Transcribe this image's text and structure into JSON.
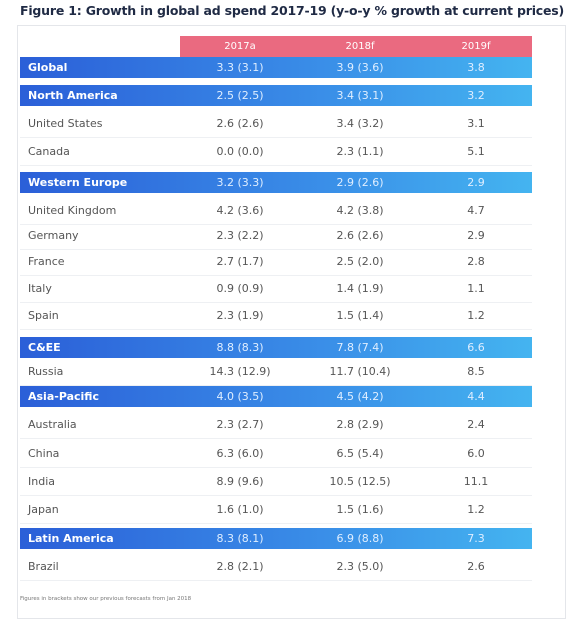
{
  "title": "Figure 1: Growth in global ad spend 2017-19 (y-o-y % growth at current prices)",
  "columns": [
    "2017a",
    "2018f",
    "2019f"
  ],
  "rows": [
    {
      "label": "Global",
      "region": true,
      "v1": "3.3 (3.1)",
      "v2": "3.9 (3.6)",
      "v3": "3.8"
    },
    {
      "label": "North America",
      "region": true,
      "v1": "2.5 (2.5)",
      "v2": "3.4 (3.1)",
      "v3": "3.2"
    },
    {
      "label": "United States",
      "region": false,
      "v1": "2.6 (2.6)",
      "v2": "3.4 (3.2)",
      "v3": "3.1"
    },
    {
      "label": "Canada",
      "region": false,
      "v1": "0.0 (0.0)",
      "v2": "2.3 (1.1)",
      "v3": "5.1"
    },
    {
      "label": "Western Europe",
      "region": true,
      "v1": "3.2 (3.3)",
      "v2": "2.9 (2.6)",
      "v3": "2.9"
    },
    {
      "label": "United Kingdom",
      "region": false,
      "v1": "4.2 (3.6)",
      "v2": "4.2 (3.8)",
      "v3": "4.7"
    },
    {
      "label": "Germany",
      "region": false,
      "v1": "2.3 (2.2)",
      "v2": "2.6 (2.6)",
      "v3": "2.9"
    },
    {
      "label": "France",
      "region": false,
      "v1": "2.7 (1.7)",
      "v2": "2.5 (2.0)",
      "v3": "2.8"
    },
    {
      "label": "Italy",
      "region": false,
      "v1": "0.9 (0.9)",
      "v2": "1.4 (1.9)",
      "v3": "1.1"
    },
    {
      "label": "Spain",
      "region": false,
      "v1": "2.3 (1.9)",
      "v2": "1.5 (1.4)",
      "v3": "1.2"
    },
    {
      "label": "C&EE",
      "region": true,
      "v1": "8.8 (8.3)",
      "v2": "7.8 (7.4)",
      "v3": "6.6"
    },
    {
      "label": "Russia",
      "region": false,
      "v1": "14.3 (12.9)",
      "v2": "11.7 (10.4)",
      "v3": "8.5"
    },
    {
      "label": "Asia-Pacific",
      "region": true,
      "v1": "4.0 (3.5)",
      "v2": "4.5 (4.2)",
      "v3": "4.4"
    },
    {
      "label": "Australia",
      "region": false,
      "v1": "2.3 (2.7)",
      "v2": "2.8 (2.9)",
      "v3": "2.4"
    },
    {
      "label": "China",
      "region": false,
      "v1": "6.3 (6.0)",
      "v2": "6.5 (5.4)",
      "v3": "6.0"
    },
    {
      "label": "India",
      "region": false,
      "v1": "8.9 (9.6)",
      "v2": "10.5 (12.5)",
      "v3": "11.1"
    },
    {
      "label": "Japan",
      "region": false,
      "v1": "1.6 (1.0)",
      "v2": "1.5 (1.6)",
      "v3": "1.2"
    },
    {
      "label": "Latin America",
      "region": true,
      "v1": "8.3 (8.1)",
      "v2": "6.9 (8.8)",
      "v3": "7.3"
    },
    {
      "label": "Brazil",
      "region": false,
      "v1": "2.8 (2.1)",
      "v2": "2.3 (5.0)",
      "v3": "2.6"
    }
  ],
  "footnote": "Figures in brackets show our previous forecasts from Jan 2018",
  "colors": {
    "header": "#ea6a80",
    "region_start": "#2b5fd8",
    "region_end": "#44b4f0"
  }
}
